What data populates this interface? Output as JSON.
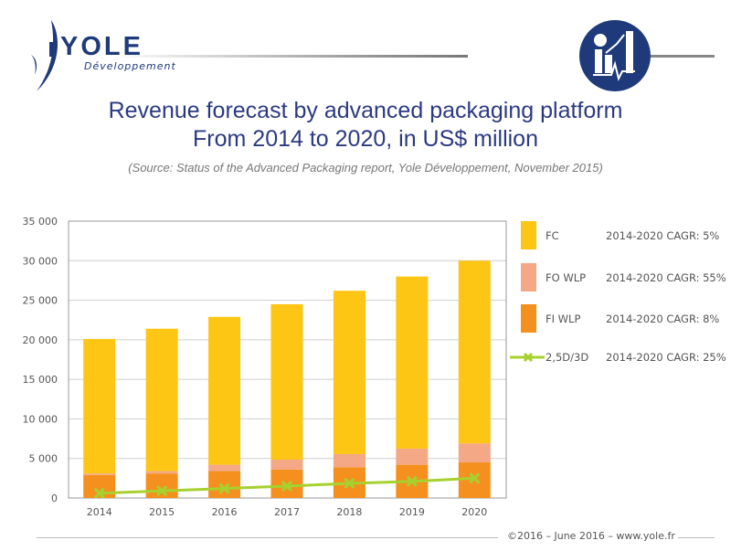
{
  "header": {
    "logo_word": "YOLE",
    "logo_sub": "Développement",
    "title_line1": "Revenue forecast by advanced packaging platform",
    "title_line2": "From 2014 to 2020, in US$ million",
    "source": "(Source:  Status of the Advanced Packaging report, Yole Développement, November 2015)",
    "badge_icon": "chart-growth-icon"
  },
  "footer": {
    "text": "©2016 – June 2016 – www.yole.fr"
  },
  "chart_data": {
    "type": "bar",
    "stacked": true,
    "title": "Revenue forecast by advanced packaging platform From 2014 to 2020, in US$ million",
    "categories": [
      "2014",
      "2015",
      "2016",
      "2017",
      "2018",
      "2019",
      "2020"
    ],
    "ylim": [
      0,
      35000
    ],
    "yticks": [
      0,
      5000,
      10000,
      15000,
      20000,
      25000,
      30000,
      35000
    ],
    "ytick_labels": [
      "0",
      "5 000",
      "10 000",
      "15 000",
      "20 000",
      "25 000",
      "30 000",
      "35 000"
    ],
    "grid": true,
    "legend_position": "right",
    "series": [
      {
        "name": "FI WLP",
        "type": "bar",
        "color": "#f5901e",
        "cagr": "2014-2020 CAGR: 8%",
        "values": [
          2900,
          3100,
          3400,
          3600,
          3900,
          4200,
          4500
        ]
      },
      {
        "name": "FO WLP",
        "type": "bar",
        "color": "#f4a886",
        "cagr": "2014-2020 CAGR: 55%",
        "values": [
          200,
          300,
          800,
          1250,
          1650,
          2050,
          2400
        ]
      },
      {
        "name": "FC",
        "type": "bar",
        "color": "#fdc614",
        "cagr": "2014-2020 CAGR: 5%",
        "values": [
          17000,
          18000,
          18700,
          19650,
          20650,
          21750,
          23100
        ]
      },
      {
        "name": "2,5D/3D",
        "type": "line",
        "color": "#a6d12e",
        "marker": "x",
        "cagr": "2014-2020 CAGR: 25%",
        "values": [
          600,
          900,
          1200,
          1500,
          1850,
          2100,
          2500
        ]
      }
    ],
    "legend_order": [
      "FC",
      "FO WLP",
      "FI WLP",
      "2,5D/3D"
    ]
  }
}
